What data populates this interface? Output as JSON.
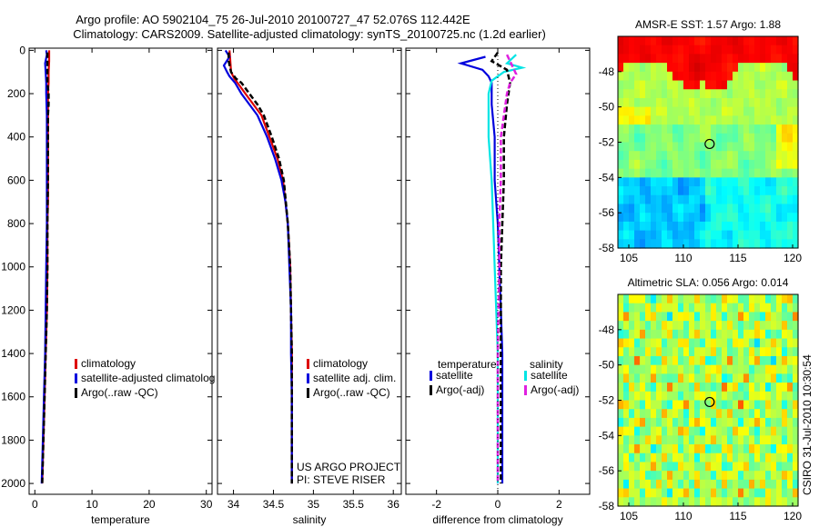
{
  "title_line1": "Argo profile: AO 5902104_75 26-Jul-2010 20100727_47 52.076S 112.442E",
  "title_line2": "Climatology: CARS2009. Satellite-adjusted climatology: synTS_20100725.nc (1.2d earlier)",
  "side_label": "CSIRO 31-Jul-2010 10:30:54",
  "colors": {
    "climatology": "#dd0000",
    "satellite": "#0000dd",
    "argo": "#000000",
    "sal_satellite": "#00e5e5",
    "sal_argo": "#e020e0"
  },
  "chart_data": [
    {
      "id": "temp",
      "type": "line",
      "xlabel": "temperature",
      "xlim": [
        -1,
        31
      ],
      "ylim": [
        2050,
        -10
      ],
      "xticks": [
        "0",
        "10",
        "20",
        "30"
      ],
      "xtick_values": [
        0,
        10,
        20,
        30
      ],
      "yticks": [
        "0",
        "200",
        "400",
        "600",
        "800",
        "1000",
        "1200",
        "1400",
        "1600",
        "1800",
        "2000"
      ],
      "ytick_values": [
        0,
        200,
        400,
        600,
        800,
        1000,
        1200,
        1400,
        1600,
        1800,
        2000
      ],
      "legend": [
        "climatology",
        "satellite-adjusted climatolog",
        "Argo(..raw -QC)"
      ],
      "series": [
        {
          "name": "climatology",
          "style": "solid",
          "points": [
            [
              2.5,
              0
            ],
            [
              2.5,
              50
            ],
            [
              2.4,
              100
            ],
            [
              2.4,
              150
            ],
            [
              2.3,
              200
            ],
            [
              2.3,
              300
            ],
            [
              2.3,
              400
            ],
            [
              2.3,
              500
            ],
            [
              2.3,
              600
            ],
            [
              2.3,
              700
            ],
            [
              2.2,
              800
            ],
            [
              2.2,
              1000
            ],
            [
              2.1,
              1200
            ],
            [
              1.9,
              1400
            ],
            [
              1.7,
              1600
            ],
            [
              1.5,
              1800
            ],
            [
              1.3,
              2000
            ]
          ]
        },
        {
          "name": "satellite",
          "style": "solid",
          "points": [
            [
              2.0,
              0
            ],
            [
              2.1,
              20
            ],
            [
              1.8,
              60
            ],
            [
              1.9,
              100
            ],
            [
              2.0,
              150
            ],
            [
              2.0,
              200
            ],
            [
              2.1,
              300
            ],
            [
              2.1,
              400
            ],
            [
              2.1,
              500
            ],
            [
              2.1,
              600
            ],
            [
              2.1,
              700
            ],
            [
              2.1,
              800
            ],
            [
              2.0,
              1000
            ],
            [
              1.9,
              1200
            ],
            [
              1.8,
              1400
            ],
            [
              1.6,
              1600
            ],
            [
              1.4,
              1800
            ],
            [
              1.2,
              2000
            ]
          ]
        },
        {
          "name": "argo",
          "style": "dashed",
          "points": [
            [
              2.2,
              10
            ],
            [
              2.2,
              50
            ],
            [
              2.2,
              100
            ],
            [
              2.2,
              150
            ],
            [
              2.4,
              200
            ],
            [
              2.4,
              250
            ],
            [
              2.3,
              300
            ],
            [
              2.3,
              400
            ],
            [
              2.3,
              500
            ],
            [
              2.3,
              600
            ],
            [
              2.2,
              800
            ],
            [
              2.2,
              1000
            ],
            [
              2.1,
              1200
            ],
            [
              1.9,
              1400
            ],
            [
              1.7,
              1600
            ],
            [
              1.5,
              1800
            ],
            [
              1.3,
              2000
            ]
          ]
        }
      ]
    },
    {
      "id": "sal",
      "type": "line",
      "xlabel": "salinity",
      "xlim": [
        33.8,
        36.1
      ],
      "ylim": [
        2050,
        -10
      ],
      "xticks": [
        "34",
        "34.5",
        "35",
        "35.5",
        "36"
      ],
      "xtick_values": [
        34,
        34.5,
        35,
        35.5,
        36
      ],
      "legend": [
        "climatology",
        "satellite adj. clim.",
        "Argo(..raw -QC)"
      ],
      "annotation": [
        "US ARGO PROJECT",
        "PI: STEVE RISER"
      ],
      "series": [
        {
          "name": "climatology",
          "style": "solid",
          "points": [
            [
              33.95,
              0
            ],
            [
              33.96,
              50
            ],
            [
              33.97,
              100
            ],
            [
              34.01,
              130
            ],
            [
              34.05,
              150
            ],
            [
              34.15,
              200
            ],
            [
              34.25,
              250
            ],
            [
              34.35,
              300
            ],
            [
              34.45,
              400
            ],
            [
              34.55,
              500
            ],
            [
              34.62,
              600
            ],
            [
              34.68,
              800
            ],
            [
              34.71,
              1000
            ],
            [
              34.72,
              1200
            ],
            [
              34.73,
              1400
            ],
            [
              34.73,
              1600
            ],
            [
              34.73,
              1800
            ],
            [
              34.73,
              2000
            ]
          ]
        },
        {
          "name": "satellite",
          "style": "solid",
          "points": [
            [
              33.9,
              0
            ],
            [
              33.95,
              30
            ],
            [
              33.88,
              70
            ],
            [
              33.92,
              100
            ],
            [
              33.95,
              120
            ],
            [
              34.02,
              150
            ],
            [
              34.1,
              200
            ],
            [
              34.2,
              250
            ],
            [
              34.3,
              300
            ],
            [
              34.42,
              400
            ],
            [
              34.52,
              500
            ],
            [
              34.6,
              600
            ],
            [
              34.65,
              700
            ],
            [
              34.68,
              800
            ],
            [
              34.7,
              1000
            ],
            [
              34.72,
              1200
            ],
            [
              34.72,
              1400
            ],
            [
              34.73,
              1600
            ],
            [
              34.73,
              1800
            ],
            [
              34.73,
              2000
            ]
          ]
        },
        {
          "name": "argo",
          "style": "dashed",
          "points": [
            [
              33.94,
              10
            ],
            [
              33.94,
              50
            ],
            [
              33.97,
              100
            ],
            [
              34.03,
              130
            ],
            [
              34.1,
              150
            ],
            [
              34.2,
              200
            ],
            [
              34.3,
              250
            ],
            [
              34.38,
              300
            ],
            [
              34.48,
              400
            ],
            [
              34.57,
              500
            ],
            [
              34.63,
              600
            ],
            [
              34.68,
              800
            ],
            [
              34.71,
              1000
            ],
            [
              34.72,
              1200
            ],
            [
              34.73,
              1400
            ],
            [
              34.73,
              1600
            ],
            [
              34.73,
              1800
            ],
            [
              34.73,
              2000
            ]
          ]
        }
      ]
    },
    {
      "id": "diff",
      "type": "line",
      "xlabel": "difference from climatology",
      "xlim": [
        -3,
        3
      ],
      "ylim": [
        2050,
        -10
      ],
      "xticks": [
        "-2",
        "0",
        "2"
      ],
      "xtick_values": [
        -2,
        0,
        2
      ],
      "legend_headers": [
        "temperature",
        "salinity"
      ],
      "legend_temp": [
        "satellite",
        "Argo(-adj)"
      ],
      "legend_sal": [
        "satellite",
        "Argo(-adj)"
      ],
      "series": [
        {
          "name": "temp satellite",
          "style": "solid",
          "color": "satellite",
          "points": [
            [
              -0.4,
              30
            ],
            [
              -1.2,
              60
            ],
            [
              -0.5,
              90
            ],
            [
              -0.3,
              120
            ],
            [
              -0.2,
              150
            ],
            [
              -0.2,
              250
            ],
            [
              -0.1,
              400
            ],
            [
              -0.1,
              600
            ],
            [
              0,
              800
            ],
            [
              0.05,
              1000
            ],
            [
              0.1,
              1200
            ],
            [
              0.15,
              1400
            ],
            [
              0.15,
              1600
            ],
            [
              0.15,
              1800
            ],
            [
              0.15,
              2000
            ]
          ]
        },
        {
          "name": "sal satellite",
          "style": "solid",
          "color": "sal_satellite",
          "points": [
            [
              0.6,
              20
            ],
            [
              0.3,
              60
            ],
            [
              0.8,
              80
            ],
            [
              0.2,
              100
            ],
            [
              -0.2,
              140
            ],
            [
              -0.3,
              200
            ],
            [
              -0.3,
              400
            ],
            [
              -0.2,
              600
            ],
            [
              -0.15,
              800
            ],
            [
              -0.1,
              1000
            ],
            [
              -0.05,
              1200
            ],
            [
              0,
              1400
            ],
            [
              0,
              1600
            ],
            [
              0,
              1800
            ],
            [
              0,
              2000
            ]
          ]
        },
        {
          "name": "temp argo",
          "style": "dashed",
          "color": "argo",
          "points": [
            [
              0,
              10
            ],
            [
              -0.2,
              50
            ],
            [
              0.3,
              90
            ],
            [
              0.4,
              150
            ],
            [
              0.3,
              250
            ],
            [
              0.2,
              400
            ],
            [
              0.2,
              600
            ],
            [
              0.15,
              800
            ],
            [
              0.1,
              1000
            ],
            [
              0.1,
              1200
            ],
            [
              0.1,
              1400
            ],
            [
              0.1,
              1600
            ],
            [
              0.1,
              1800
            ],
            [
              0.1,
              2000
            ]
          ]
        },
        {
          "name": "sal argo",
          "style": "dashed",
          "color": "sal_argo",
          "points": [
            [
              0.3,
              20
            ],
            [
              0.6,
              110
            ],
            [
              0.4,
              150
            ],
            [
              0.3,
              200
            ],
            [
              0.1,
              400
            ],
            [
              0.1,
              600
            ],
            [
              0.05,
              800
            ],
            [
              0.05,
              1000
            ],
            [
              0.02,
              1200
            ],
            [
              0,
              1400
            ],
            [
              0,
              1600
            ],
            [
              0,
              2000
            ]
          ]
        }
      ]
    },
    {
      "id": "sst",
      "type": "heatmap",
      "title": "AMSR-E SST: 1.57 Argo: 1.88",
      "xlim": [
        104,
        120.5
      ],
      "ylim": [
        -58,
        -46
      ],
      "xticks": [
        "105",
        "110",
        "115",
        "120"
      ],
      "xtick_values": [
        105,
        110,
        115,
        120
      ],
      "yticks": [
        "-48",
        "-50",
        "-52",
        "-54",
        "-56",
        "-58"
      ],
      "ytick_values": [
        -48,
        -50,
        -52,
        -54,
        -56,
        -58
      ],
      "marker": [
        112.4,
        -52.1
      ]
    },
    {
      "id": "sla",
      "type": "heatmap",
      "title": "Altimetric SLA: 0.056 Argo: 0.014",
      "xlim": [
        104,
        120.5
      ],
      "ylim": [
        -58,
        -46
      ],
      "xticks": [
        "105",
        "110",
        "115",
        "120"
      ],
      "xtick_values": [
        105,
        110,
        115,
        120
      ],
      "yticks": [
        "-48",
        "-50",
        "-52",
        "-54",
        "-56",
        "-58"
      ],
      "ytick_values": [
        -48,
        -50,
        -52,
        -54,
        -56,
        -58
      ],
      "marker": [
        112.4,
        -52.1
      ]
    }
  ]
}
